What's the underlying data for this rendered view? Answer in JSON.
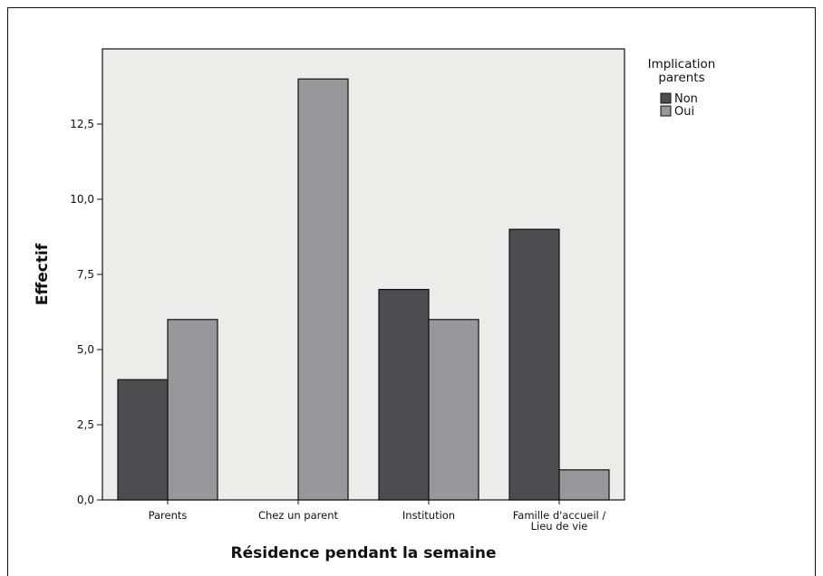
{
  "chart_data": {
    "type": "bar",
    "xlabel": "Résidence pendant la semaine",
    "ylabel": "Effectif",
    "categories": [
      [
        "Parents"
      ],
      [
        "Chez un parent"
      ],
      [
        "Institution"
      ],
      [
        "Famille d'accueil /",
        "Lieu de vie"
      ]
    ],
    "series": [
      {
        "name": "Non",
        "color": "#4d4d4f",
        "values": [
          4,
          0,
          7,
          9
        ]
      },
      {
        "name": "Oui",
        "color": "#98989b",
        "values": [
          6,
          14,
          6,
          1
        ]
      }
    ],
    "ylim": [
      0,
      15
    ],
    "yticks": [
      0,
      2.5,
      5,
      7.5,
      10,
      12.5
    ],
    "ytick_labels": [
      "0,0",
      "2,5",
      "5,0",
      "7,5",
      "10,0",
      "12,5"
    ],
    "legend": {
      "title": [
        "Implication",
        "parents"
      ],
      "position": "top-right"
    },
    "plot_background": "#ececea",
    "grid": false
  }
}
